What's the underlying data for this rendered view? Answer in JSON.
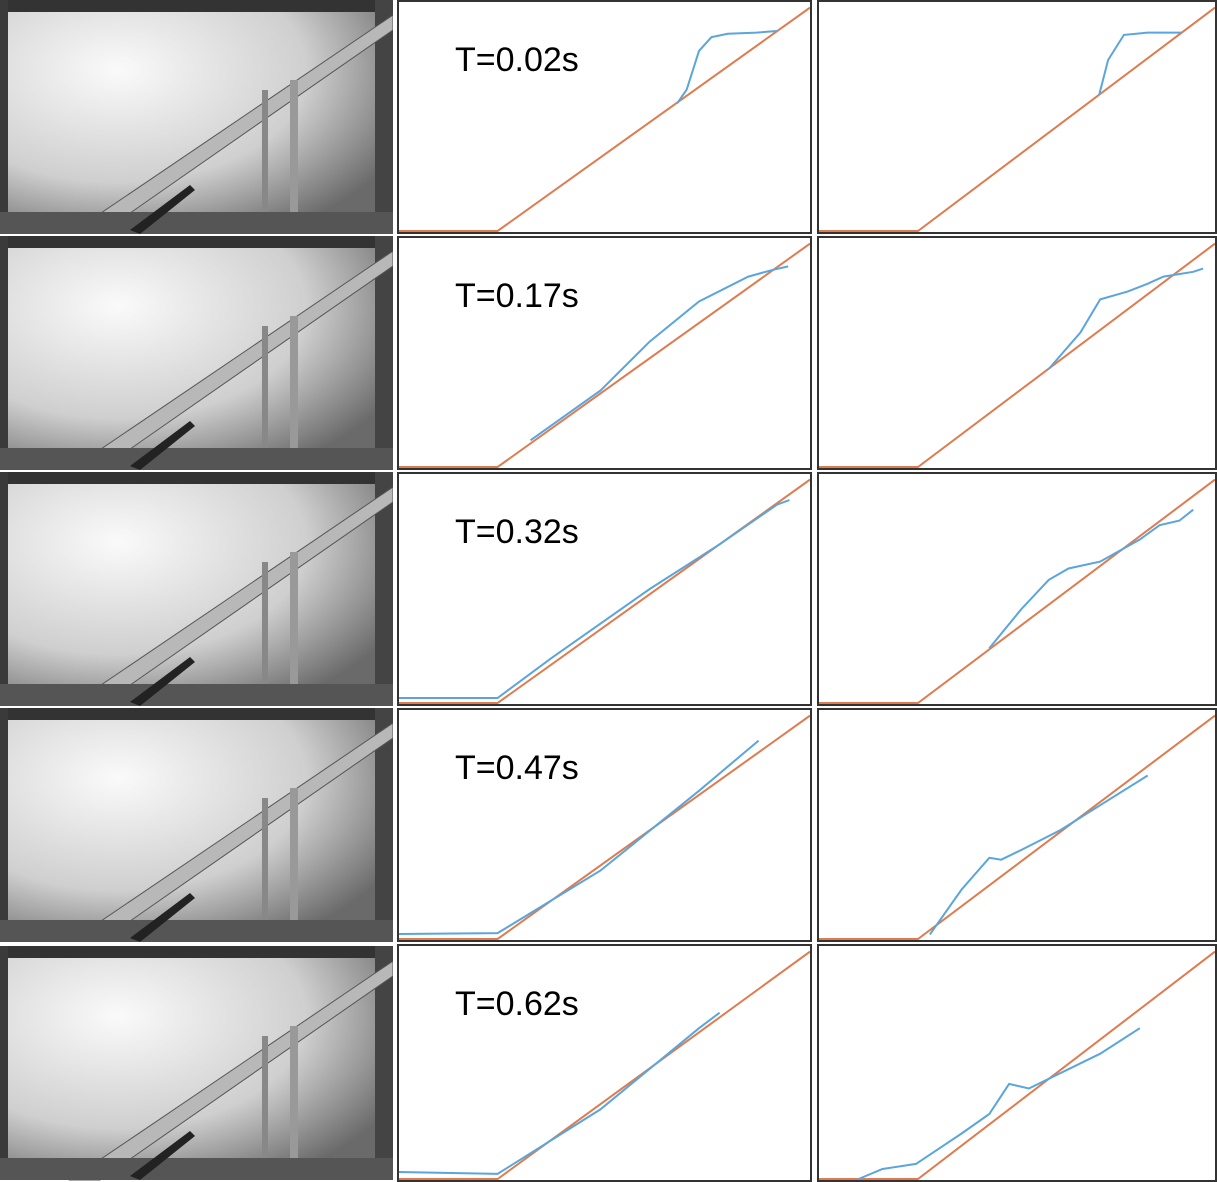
{
  "chart_data": [
    {
      "type": "line",
      "annotation": "T=0.02s",
      "xlim": [
        0,
        100
      ],
      "ylim": [
        0,
        100
      ],
      "series": [
        {
          "color": "#e07b4f",
          "x": [
            0,
            24,
            100
          ],
          "values": [
            0,
            0,
            98
          ]
        },
        {
          "color": "#5aa5dc",
          "x": [
            67.7,
            70,
            73,
            76,
            80,
            87,
            92
          ],
          "values": [
            56,
            62,
            79,
            85,
            86.5,
            87,
            87.7
          ]
        }
      ]
    },
    {
      "type": "line",
      "xlim": [
        0,
        100
      ],
      "ylim": [
        0,
        100
      ],
      "series": [
        {
          "color": "#e07b4f",
          "x": [
            0,
            25,
            100
          ],
          "values": [
            0,
            0,
            98
          ]
        },
        {
          "color": "#5aa5dc",
          "x": [
            70.75,
            73,
            77,
            83,
            91.6
          ],
          "values": [
            59.8,
            75,
            86,
            87,
            87
          ]
        }
      ]
    },
    {
      "type": "line",
      "annotation": "T=0.17s",
      "xlim": [
        0,
        100
      ],
      "ylim": [
        0,
        100
      ],
      "series": [
        {
          "color": "#e07b4f",
          "x": [
            0,
            24,
            100
          ],
          "values": [
            0,
            0,
            98
          ]
        },
        {
          "color": "#5aa5dc",
          "x": [
            32,
            49,
            61,
            73,
            85,
            91,
            94.7
          ],
          "values": [
            11.7,
            33.5,
            55,
            72.6,
            83.5,
            86.5,
            88
          ]
        }
      ]
    },
    {
      "type": "line",
      "xlim": [
        0,
        100
      ],
      "ylim": [
        0,
        100
      ],
      "series": [
        {
          "color": "#e07b4f",
          "x": [
            0,
            25,
            100
          ],
          "values": [
            0,
            0,
            98
          ]
        },
        {
          "color": "#5aa5dc",
          "x": [
            58,
            66,
            71,
            78,
            83,
            87,
            94.5,
            97
          ],
          "values": [
            43,
            59,
            73.5,
            77,
            80.4,
            83.5,
            85.6,
            87
          ]
        }
      ]
    },
    {
      "type": "line",
      "annotation": "T=0.32s",
      "xlim": [
        0,
        100
      ],
      "ylim": [
        0,
        100
      ],
      "series": [
        {
          "color": "#e07b4f",
          "x": [
            0,
            24,
            100
          ],
          "values": [
            0,
            0,
            98
          ]
        },
        {
          "color": "#5aa5dc",
          "x": [
            0,
            24,
            37,
            61,
            78,
            92,
            95
          ],
          "values": [
            2.2,
            2.2,
            19.6,
            50,
            69.6,
            87,
            89
          ]
        }
      ]
    },
    {
      "type": "line",
      "xlim": [
        0,
        100
      ],
      "ylim": [
        0,
        100
      ],
      "series": [
        {
          "color": "#e07b4f",
          "x": [
            0,
            25,
            100
          ],
          "values": [
            0,
            0,
            98
          ]
        },
        {
          "color": "#5aa5dc",
          "x": [
            43,
            51,
            58,
            63,
            71,
            81,
            86,
            91,
            94.5
          ],
          "values": [
            24,
            41,
            54,
            59,
            62,
            71.7,
            78,
            80,
            84.8
          ]
        }
      ]
    },
    {
      "type": "line",
      "annotation": "T=0.47s",
      "xlim": [
        0,
        100
      ],
      "ylim": [
        0,
        100
      ],
      "series": [
        {
          "color": "#e07b4f",
          "x": [
            0,
            24,
            100
          ],
          "values": [
            0,
            0,
            98
          ]
        },
        {
          "color": "#5aa5dc",
          "x": [
            0,
            24,
            49,
            73,
            87.5
          ],
          "values": [
            2.2,
            2.6,
            30,
            65,
            87
          ]
        }
      ]
    },
    {
      "type": "line",
      "xlim": [
        0,
        100
      ],
      "ylim": [
        0,
        100
      ],
      "series": [
        {
          "color": "#e07b4f",
          "x": [
            0,
            25,
            100
          ],
          "values": [
            0,
            0,
            98
          ]
        },
        {
          "color": "#5aa5dc",
          "x": [
            28,
            36,
            43,
            46,
            51,
            61,
            71,
            83
          ],
          "values": [
            2,
            21.7,
            35.6,
            34.8,
            39,
            47.8,
            58.7,
            71.7
          ]
        }
      ]
    },
    {
      "type": "line",
      "annotation": "T=0.62s",
      "xlim": [
        0,
        100
      ],
      "ylim": [
        0,
        100
      ],
      "series": [
        {
          "color": "#e07b4f",
          "x": [
            0,
            24,
            100
          ],
          "values": [
            0,
            0,
            98
          ]
        },
        {
          "color": "#5aa5dc",
          "x": [
            0,
            24,
            49,
            73,
            78
          ],
          "values": [
            3,
            2.2,
            30,
            65,
            71.7
          ]
        }
      ]
    },
    {
      "type": "line",
      "xlim": [
        0,
        100
      ],
      "ylim": [
        0,
        100
      ],
      "series": [
        {
          "color": "#e07b4f",
          "x": [
            0,
            25,
            100
          ],
          "values": [
            0,
            0,
            98
          ]
        },
        {
          "color": "#5aa5dc",
          "x": [
            10,
            16,
            24.5,
            36,
            43,
            48,
            53,
            71,
            81
          ],
          "values": [
            0,
            4.3,
            6.5,
            19.6,
            28,
            41,
            39,
            54,
            65
          ]
        }
      ]
    }
  ]
}
